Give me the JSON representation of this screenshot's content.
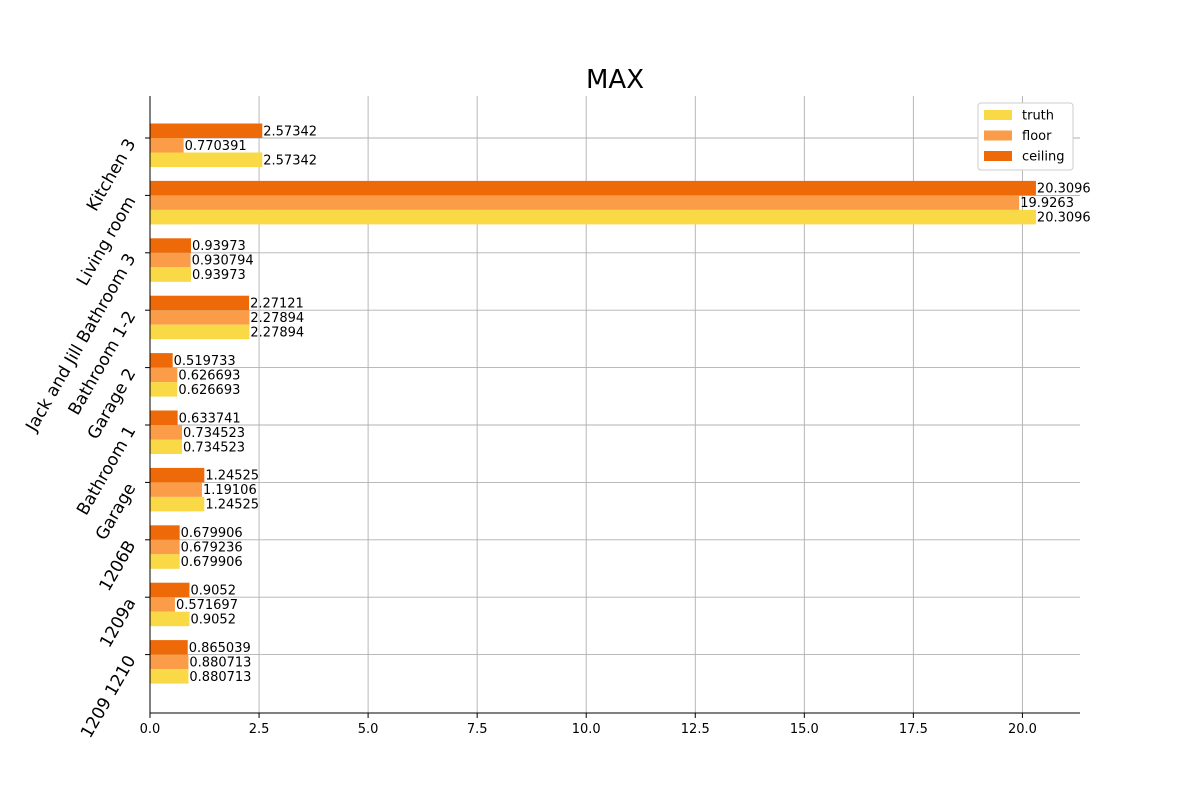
{
  "chart_data": {
    "type": "bar",
    "orientation": "horizontal",
    "title": "MAX",
    "xlabel": "",
    "ylabel": "",
    "xlim": [
      0,
      21.32
    ],
    "xticks": [
      0.0,
      2.5,
      5.0,
      7.5,
      10.0,
      12.5,
      15.0,
      17.5,
      20.0
    ],
    "xtick_labels": [
      "0.0",
      "2.5",
      "5.0",
      "7.5",
      "10.0",
      "12.5",
      "15.0",
      "17.5",
      "20.0"
    ],
    "grid": true,
    "legend_position": "top-right",
    "categories": [
      "Kitchen 3",
      "Living room",
      "Jack and Jill Bathroom 3",
      "Bathroom 1-2",
      "Garage 2",
      "Bathroom 1",
      "Garage",
      "1206B",
      "1209a",
      "1209 1210"
    ],
    "series": [
      {
        "name": "truth",
        "color": "#f9d946",
        "values": [
          2.57342,
          20.3096,
          0.93973,
          2.27894,
          0.626693,
          0.734523,
          1.24525,
          0.679906,
          0.9052,
          0.880713
        ],
        "labels": [
          "2.57342",
          "20.3096",
          "0.93973",
          "2.27894",
          "0.626693",
          "0.734523",
          "1.24525",
          "0.679906",
          "0.9052",
          "0.880713"
        ]
      },
      {
        "name": "floor",
        "color": "#fa9c48",
        "values": [
          0.770391,
          19.9263,
          0.930794,
          2.27894,
          0.626693,
          0.734523,
          1.19106,
          0.679236,
          0.571697,
          0.880713
        ],
        "labels": [
          "0.770391",
          "19.9263",
          "0.930794",
          "2.27894",
          "0.626693",
          "0.734523",
          "1.19106",
          "0.679236",
          "0.571697",
          "0.880713"
        ]
      },
      {
        "name": "ceiling",
        "color": "#ee6a08",
        "values": [
          2.57342,
          20.3096,
          0.93973,
          2.27121,
          0.519733,
          0.633741,
          1.24525,
          0.679906,
          0.9052,
          0.865039
        ],
        "labels": [
          "2.57342",
          "20.3096",
          "0.93973",
          "2.27121",
          "0.519733",
          "0.633741",
          "1.24525",
          "0.679906",
          "0.9052",
          "0.865039"
        ]
      }
    ]
  }
}
